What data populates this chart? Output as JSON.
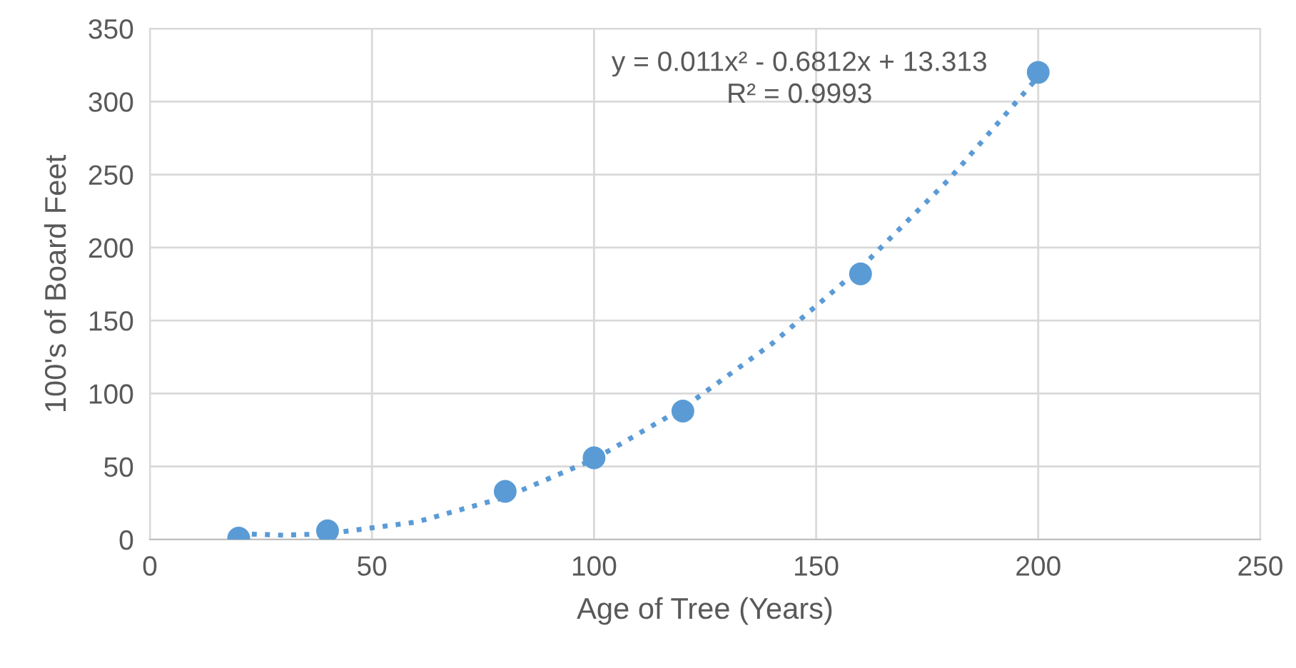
{
  "chart_data": {
    "type": "scatter",
    "xlabel": "Age of Tree (Years)",
    "ylabel": "100's of Board Feet",
    "x": [
      20,
      40,
      80,
      100,
      120,
      160,
      200
    ],
    "series": [
      {
        "color": "#5b9bd5",
        "marker": "circle",
        "values": [
          1,
          6,
          33,
          56,
          88,
          182,
          320
        ]
      },
      {
        "type": "line",
        "color": "#5b9bd5",
        "marker": "none",
        "line_style": "dotted",
        "x": [
          20,
          30,
          40,
          60,
          80,
          100,
          120,
          140,
          160,
          180,
          200
        ],
        "values": [
          4,
          3,
          4,
          12,
          29,
          55,
          90,
          134,
          186,
          247,
          317
        ]
      }
    ],
    "annotations": [
      "y = 0.011x² - 0.6812x + 13.313",
      "R² = 0.9993"
    ],
    "xlim": [
      0,
      250
    ],
    "xticks": [
      0,
      50,
      100,
      150,
      200,
      250
    ],
    "ylim": [
      0,
      350
    ],
    "yticks": [
      0,
      50,
      100,
      150,
      200,
      250,
      300,
      350
    ],
    "grid": true,
    "legend": false
  }
}
